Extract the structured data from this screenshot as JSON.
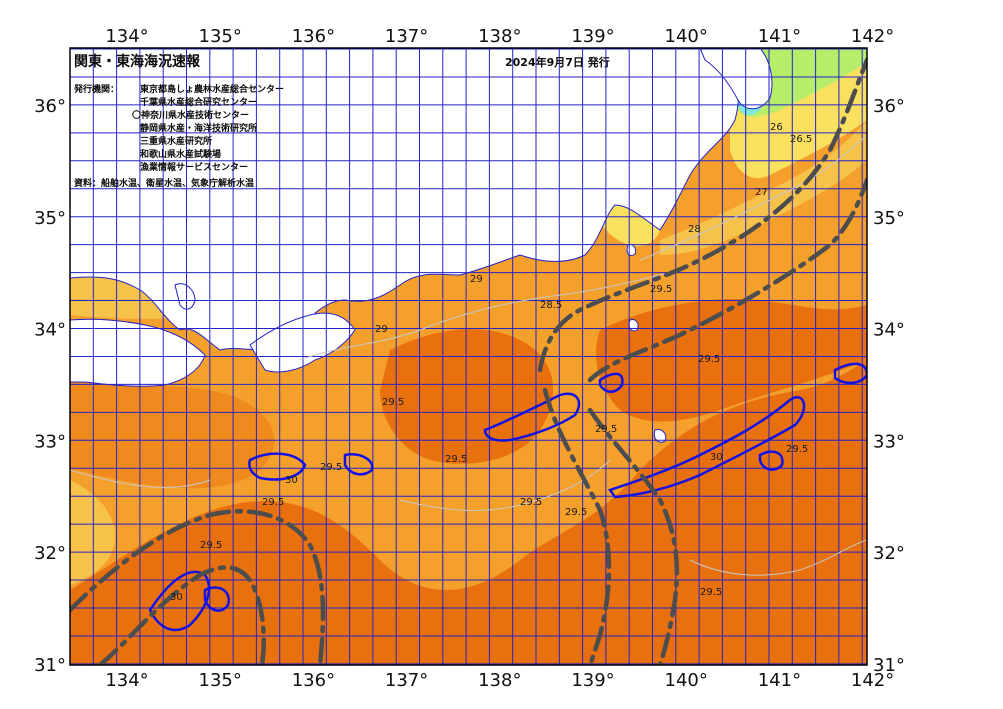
{
  "title": "関東・東海海況速報",
  "issue_date": "2024年9月7日 発行",
  "issuers_label": "発行機関：",
  "issuers": [
    "東京都島しょ農林水産総合センター",
    "千葉県水産総合研究センター",
    "〇神奈川県水産技術センター",
    "静岡県水産・海洋技術研究所",
    "三重県水産研究所",
    "和歌山県水産試験場",
    "漁業情報サービスセンター"
  ],
  "sources": "資料：船舶水温、衛星水温、気象庁解析水温",
  "lon_ticks": [
    "134°",
    "135°",
    "136°",
    "137°",
    "138°",
    "139°",
    "140°",
    "141°",
    "142°"
  ],
  "lat_ticks": [
    "36°",
    "35°",
    "34°",
    "33°",
    "32°",
    "31°"
  ],
  "isotherm_labels": [
    "29.5",
    "29.5",
    "29.5",
    "29.5",
    "29.5",
    "29.5",
    "29.5",
    "29.5",
    "29.5",
    "29.5",
    "29",
    "29",
    "30",
    "30",
    "30",
    "28.5",
    "28",
    "27",
    "26",
    "26.5",
    "29.5",
    "29.5"
  ],
  "colors": {
    "sea_deep": "#e8700e",
    "sea_mid": "#f5a02a",
    "sea_warm": "#f08a1e",
    "sea_cool": "#f7c24a",
    "sea_cooler": "#f9e05e",
    "sea_green": "#b6ee6a",
    "sea_cyan": "#7fe8e0",
    "land": "#ffffff",
    "grid": "#2323c8",
    "contour_30": "#1212e6",
    "kuroshio": "#4d4d4d"
  }
}
